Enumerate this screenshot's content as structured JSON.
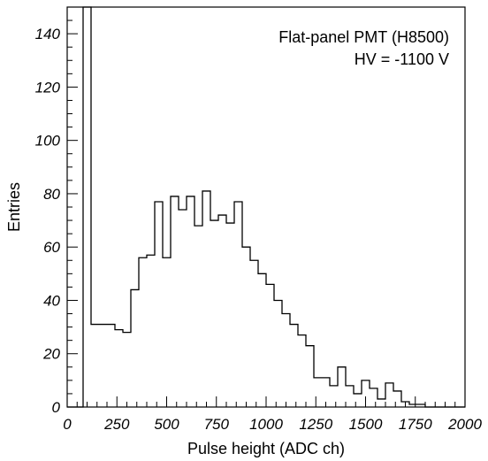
{
  "chart_data": {
    "type": "histogram",
    "xlabel": "Pulse height (ADC ch)",
    "ylabel": "Entries",
    "xlim": [
      0,
      2000
    ],
    "ylim": [
      0,
      150
    ],
    "x_ticks": [
      0,
      250,
      500,
      750,
      1000,
      1250,
      1500,
      1750,
      2000
    ],
    "x_tick_labels": [
      "0",
      "250",
      "500",
      "750",
      "1000",
      "1250",
      "1500",
      "1750",
      "2000"
    ],
    "y_ticks": [
      0,
      20,
      40,
      60,
      80,
      100,
      120,
      140
    ],
    "y_tick_labels": [
      "0",
      "20",
      "40",
      "60",
      "80",
      "100",
      "120",
      "140"
    ],
    "bin_width": 40,
    "bin_edges_start": 0,
    "counts": [
      0,
      0,
      150,
      31,
      31,
      31,
      29,
      28,
      44,
      56,
      57,
      77,
      56,
      79,
      74,
      79,
      68,
      81,
      70,
      72,
      69,
      77,
      60,
      55,
      50,
      46,
      40,
      35,
      31,
      27,
      23,
      11,
      11,
      8,
      15,
      8,
      5,
      10,
      7,
      3,
      9,
      6,
      2,
      1,
      1,
      0,
      0,
      0,
      0,
      0
    ],
    "annotations": [
      "Flat-panel PMT (H8500)",
      "HV = -1100 V"
    ],
    "grid": false,
    "legend": "none"
  }
}
